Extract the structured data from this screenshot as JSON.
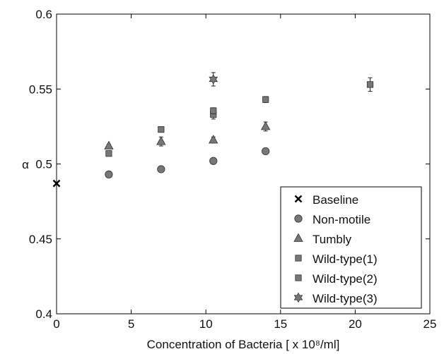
{
  "chart_data": {
    "type": "scatter",
    "title": "",
    "xlabel": "Concentration of Bacteria [ x 10⁸/ml]",
    "ylabel": "α",
    "xlim": [
      0,
      25
    ],
    "ylim": [
      0.4,
      0.6
    ],
    "xticks": [
      0,
      5,
      10,
      15,
      20,
      25
    ],
    "yticks": [
      0.4,
      0.45,
      0.5,
      0.55,
      0.6
    ],
    "xtick_labels": [
      "0",
      "5",
      "10",
      "15",
      "20",
      "25"
    ],
    "ytick_labels": [
      "0.4",
      "0.45",
      "0.5",
      "0.55",
      "0.6"
    ],
    "grid": false,
    "legend_position": "bottom-right",
    "colors": {
      "marker_fill": "#777777",
      "marker_edge": "#333333",
      "baseline": "#000000"
    },
    "series": [
      {
        "name": "Baseline",
        "marker": "x",
        "points": [
          {
            "x": 0,
            "y": 0.487,
            "err": 0
          }
        ]
      },
      {
        "name": "Non-motile",
        "marker": "circle",
        "points": [
          {
            "x": 3.5,
            "y": 0.493,
            "err": 0
          },
          {
            "x": 7,
            "y": 0.4965,
            "err": 0
          },
          {
            "x": 10.5,
            "y": 0.502,
            "err": 0
          },
          {
            "x": 14,
            "y": 0.5085,
            "err": 0
          }
        ]
      },
      {
        "name": "Tumbly",
        "marker": "triangle",
        "points": [
          {
            "x": 3.5,
            "y": 0.512,
            "err": 0.001
          },
          {
            "x": 7,
            "y": 0.515,
            "err": 0.003
          },
          {
            "x": 10.5,
            "y": 0.516,
            "err": 0.002
          },
          {
            "x": 14,
            "y": 0.525,
            "err": 0.003
          }
        ]
      },
      {
        "name": "Wild-type(1)",
        "marker": "square",
        "points": [
          {
            "x": 3.5,
            "y": 0.507,
            "err": 0.001
          },
          {
            "x": 7,
            "y": 0.523,
            "err": 0.001
          },
          {
            "x": 10.5,
            "y": 0.533,
            "err": 0.003
          },
          {
            "x": 14,
            "y": 0.543,
            "err": 0.002
          }
        ]
      },
      {
        "name": "Wild-type(2)",
        "marker": "square",
        "points": [
          {
            "x": 10.5,
            "y": 0.5355,
            "err": 0.002
          },
          {
            "x": 21,
            "y": 0.553,
            "err": 0.0045
          }
        ]
      },
      {
        "name": "Wild-type(3)",
        "marker": "hexagram",
        "points": [
          {
            "x": 10.5,
            "y": 0.5565,
            "err": 0.0045
          }
        ]
      }
    ]
  }
}
